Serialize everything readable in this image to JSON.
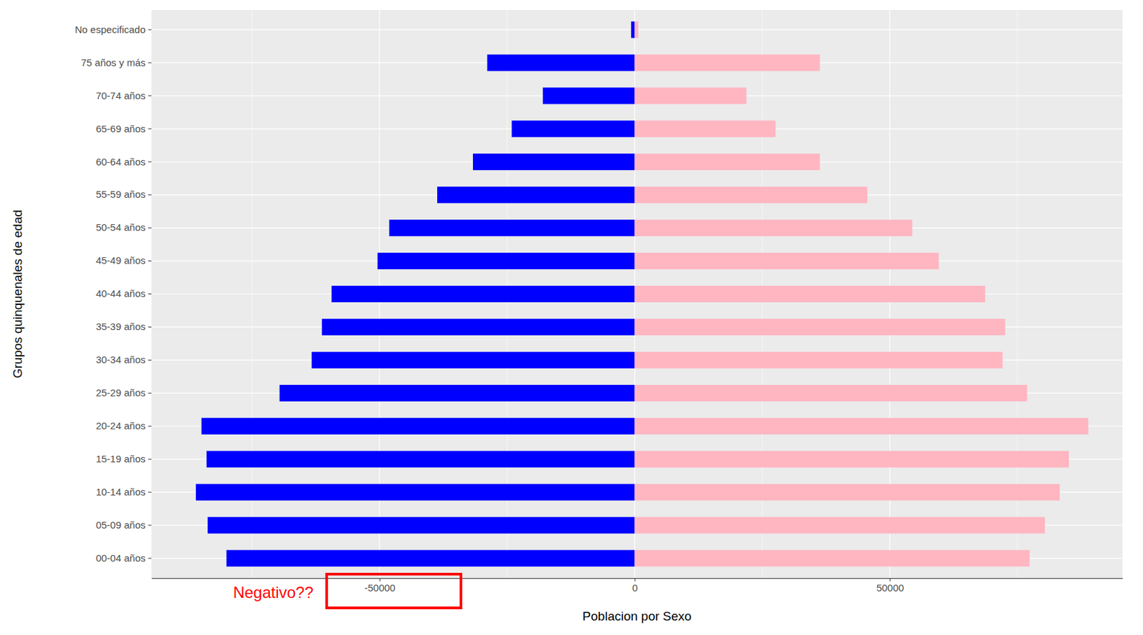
{
  "chart_data": {
    "type": "bar",
    "orientation": "horizontal",
    "x_label": "Poblacion por Sexo",
    "y_label": "Grupos quinquenales de edad",
    "categories": [
      "00-04 años",
      "05-09 años",
      "10-14 años",
      "15-19 años",
      "20-24 años",
      "25-29 años",
      "30-34 años",
      "35-39 años",
      "40-44 años",
      "45-49 años",
      "50-54 años",
      "55-59 años",
      "60-64 años",
      "65-69 años",
      "70-74 años",
      "75 años y más",
      "No especificado"
    ],
    "series": [
      {
        "color": "#0000ff",
        "values": [
          -80000,
          -83700,
          -86000,
          -83900,
          -84900,
          -69600,
          -63300,
          -61300,
          -59400,
          -50400,
          -48100,
          -38700,
          -31700,
          -24100,
          -18000,
          -28900,
          -700
        ]
      },
      {
        "color": "#ffb6c1",
        "values": [
          77400,
          80400,
          83300,
          85100,
          88900,
          76900,
          72100,
          72600,
          68700,
          59600,
          54400,
          45600,
          36300,
          27600,
          21900,
          36300,
          700
        ]
      }
    ],
    "xlim": [
      -94700,
      95600
    ],
    "xticks": [
      -50000,
      0,
      50000
    ],
    "grid": true,
    "annotations": [
      {
        "text": "Negativo??",
        "color": "#ff0000"
      }
    ]
  }
}
